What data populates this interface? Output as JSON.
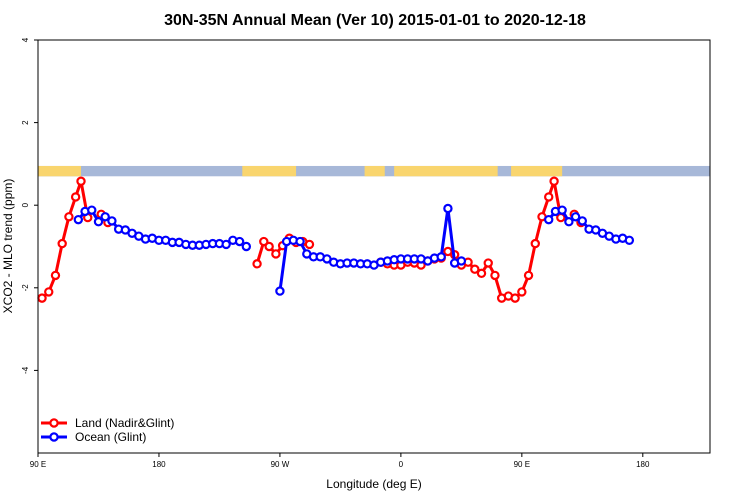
{
  "chart_data": {
    "type": "line",
    "title": "30N-35N Annual Mean (Ver 10)   2015-01-01 to 2020-12-18",
    "xlabel": "Longitude (deg E)",
    "ylabel": "XCO2 - MLO trend (ppm)",
    "xlim": [
      90,
      590
    ],
    "ylim": [
      -6,
      4
    ],
    "x_ticks": [
      {
        "value": 90,
        "label": "90 E"
      },
      {
        "value": 180,
        "label": "180"
      },
      {
        "value": 270,
        "label": "90 W"
      },
      {
        "value": 360,
        "label": "0"
      },
      {
        "value": 450,
        "label": "90 E"
      },
      {
        "value": 540,
        "label": "180"
      }
    ],
    "y_ticks": [
      {
        "value": -4,
        "label": "-4"
      },
      {
        "value": -2,
        "label": "-2"
      },
      {
        "value": 0,
        "label": "0"
      },
      {
        "value": 2,
        "label": "2"
      },
      {
        "value": 4,
        "label": "4"
      }
    ],
    "grid": false,
    "legend_position": "bottom-left",
    "land_mask_band": {
      "y_range": [
        0.7,
        0.95
      ],
      "land_color": "#f9d56e",
      "ocean_color": "#a7b8d8",
      "land_segments": [
        [
          90,
          122
        ],
        [
          242,
          282
        ],
        [
          355,
          432
        ],
        [
          442,
          480
        ],
        [
          333,
          348
        ]
      ]
    },
    "series": [
      {
        "name": "Land (Nadir&Glint)",
        "color": "#ff0000",
        "points": [
          [
            93,
            -2.25
          ],
          [
            98,
            -2.1
          ],
          [
            103,
            -1.7
          ],
          [
            108,
            -0.93
          ],
          [
            113,
            -0.28
          ],
          [
            118,
            0.2
          ],
          [
            122,
            0.58
          ],
          [
            127,
            -0.3
          ],
          null,
          [
            137,
            -0.22
          ],
          [
            142,
            -0.42
          ],
          null,
          [
            253,
            -1.42
          ],
          [
            258,
            -0.88
          ],
          [
            262,
            -1.0
          ],
          [
            267,
            -1.18
          ],
          [
            272,
            -0.98
          ],
          [
            277,
            -0.8
          ],
          [
            282,
            -0.9
          ],
          [
            287,
            -0.88
          ],
          [
            292,
            -0.95
          ],
          null,
          [
            345,
            -1.38
          ],
          [
            350,
            -1.42
          ],
          [
            355,
            -1.45
          ],
          [
            360,
            -1.45
          ],
          [
            365,
            -1.38
          ],
          [
            370,
            -1.4
          ],
          [
            375,
            -1.45
          ],
          [
            380,
            -1.35
          ],
          [
            385,
            -1.3
          ],
          [
            390,
            -1.28
          ],
          [
            395,
            -1.12
          ],
          [
            400,
            -1.2
          ],
          [
            405,
            -1.45
          ],
          [
            410,
            -1.38
          ],
          [
            415,
            -1.55
          ],
          [
            420,
            -1.65
          ],
          [
            425,
            -1.4
          ],
          [
            430,
            -1.7
          ],
          [
            435,
            -2.25
          ],
          [
            440,
            -2.2
          ],
          [
            445,
            -2.25
          ],
          [
            450,
            -2.1
          ],
          [
            455,
            -1.7
          ],
          [
            460,
            -0.93
          ],
          [
            465,
            -0.28
          ],
          [
            470,
            0.2
          ],
          [
            474,
            0.58
          ],
          [
            479,
            -0.3
          ],
          null,
          [
            489,
            -0.22
          ],
          [
            494,
            -0.42
          ]
        ]
      },
      {
        "name": "Ocean (Glint)",
        "color": "#0000ff",
        "points": [
          [
            120,
            -0.35
          ],
          [
            125,
            -0.15
          ],
          [
            130,
            -0.12
          ],
          [
            135,
            -0.4
          ],
          [
            140,
            -0.28
          ],
          [
            145,
            -0.38
          ],
          [
            150,
            -0.58
          ],
          [
            155,
            -0.6
          ],
          [
            160,
            -0.68
          ],
          [
            165,
            -0.75
          ],
          [
            170,
            -0.82
          ],
          [
            175,
            -0.8
          ],
          [
            180,
            -0.85
          ],
          [
            185,
            -0.85
          ],
          [
            190,
            -0.9
          ],
          [
            195,
            -0.9
          ],
          [
            200,
            -0.95
          ],
          [
            205,
            -0.97
          ],
          [
            210,
            -0.97
          ],
          [
            215,
            -0.95
          ],
          [
            220,
            -0.93
          ],
          [
            225,
            -0.93
          ],
          [
            230,
            -0.95
          ],
          [
            235,
            -0.85
          ],
          [
            240,
            -0.88
          ],
          [
            245,
            -1.0
          ],
          null,
          [
            270,
            -2.08
          ],
          [
            275,
            -0.88
          ],
          [
            280,
            -0.85
          ],
          [
            285,
            -0.88
          ],
          [
            290,
            -1.18
          ],
          [
            295,
            -1.25
          ],
          [
            300,
            -1.25
          ],
          [
            305,
            -1.3
          ],
          [
            310,
            -1.38
          ],
          [
            315,
            -1.42
          ],
          [
            320,
            -1.4
          ],
          [
            325,
            -1.4
          ],
          [
            330,
            -1.42
          ],
          [
            335,
            -1.42
          ],
          [
            340,
            -1.45
          ],
          [
            345,
            -1.38
          ],
          [
            350,
            -1.35
          ],
          [
            355,
            -1.32
          ],
          [
            360,
            -1.3
          ],
          [
            365,
            -1.3
          ],
          [
            370,
            -1.3
          ],
          [
            375,
            -1.3
          ],
          [
            380,
            -1.35
          ],
          [
            385,
            -1.28
          ],
          [
            390,
            -1.25
          ],
          [
            395,
            -0.08
          ],
          [
            400,
            -1.4
          ],
          [
            405,
            -1.35
          ],
          null,
          [
            470,
            -0.35
          ],
          [
            475,
            -0.15
          ],
          [
            480,
            -0.12
          ],
          [
            485,
            -0.4
          ],
          [
            490,
            -0.28
          ],
          [
            495,
            -0.38
          ],
          [
            500,
            -0.58
          ],
          [
            505,
            -0.6
          ],
          [
            510,
            -0.68
          ],
          [
            515,
            -0.75
          ],
          [
            520,
            -0.82
          ],
          [
            525,
            -0.8
          ],
          [
            530,
            -0.85
          ]
        ]
      }
    ]
  }
}
